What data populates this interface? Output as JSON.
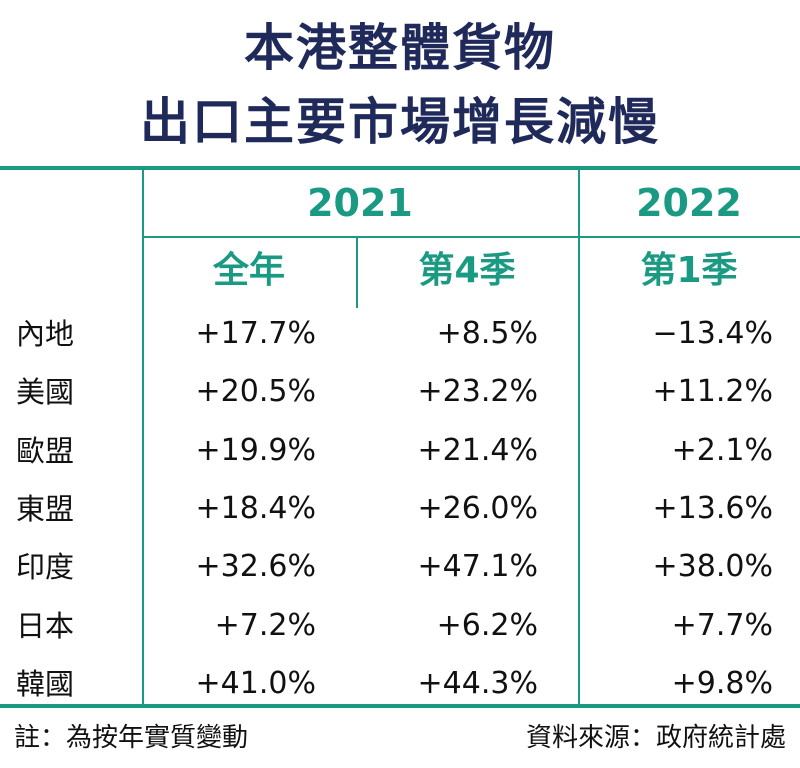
{
  "title": {
    "line1": "本港整體貨物",
    "line2": "出口主要市場增長減慢"
  },
  "header": {
    "years": [
      "2021",
      "2022"
    ],
    "periods": [
      "全年",
      "第4季",
      "第1季"
    ]
  },
  "rows": [
    {
      "region": "內地",
      "values": [
        "+17.7%",
        "+8.5%",
        "−13.4%"
      ]
    },
    {
      "region": "美國",
      "values": [
        "+20.5%",
        "+23.2%",
        "+11.2%"
      ]
    },
    {
      "region": "歐盟",
      "values": [
        "+19.9%",
        "+21.4%",
        "+2.1%"
      ]
    },
    {
      "region": "東盟",
      "values": [
        "+18.4%",
        "+26.0%",
        "+13.6%"
      ]
    },
    {
      "region": "印度",
      "values": [
        "+32.6%",
        "+47.1%",
        "+38.0%"
      ]
    },
    {
      "region": "日本",
      "values": [
        "+7.2%",
        "+6.2%",
        "+7.7%"
      ]
    },
    {
      "region": "韓國",
      "values": [
        "+41.0%",
        "+44.3%",
        "+9.8%"
      ]
    }
  ],
  "footer": {
    "note": "註：為按年實質變動",
    "source": "資料來源：政府統計處"
  },
  "colors": {
    "title": "#1f2a5a",
    "accent": "#1a9a83"
  }
}
